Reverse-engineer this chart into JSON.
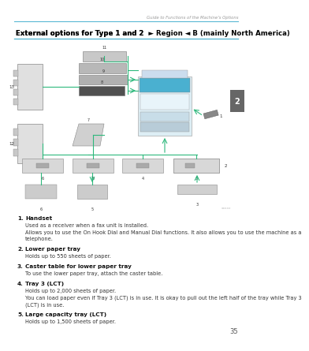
{
  "page_bg": "#ffffff",
  "header_text": "Guide to Functions of the Machine’s Options",
  "header_color": "#999999",
  "header_fontsize": 3.8,
  "header_line_color": "#5bb8d4",
  "title_text": "External options for Type 1 and 2 ",
  "title_region": "► Region ◄",
  "title_b": " B",
  "title_rest": "(mainly North America)",
  "title_fontsize": 6.2,
  "title_color": "#000000",
  "title_underline_color": "#5bb8d4",
  "tab_text": "2",
  "tab_bg": "#666666",
  "tab_color": "#ffffff",
  "page_number": "35",
  "diagram_line_color": "#2db87c",
  "items": [
    {
      "number": "1.",
      "title": "Handset",
      "lines": [
        "Used as a receiver when a fax unit is installed.",
        "Allows you to use the On Hook Dial and Manual Dial functions. It also allows you to use the machine as a",
        "telephone."
      ]
    },
    {
      "number": "2.",
      "title": "Lower paper tray",
      "lines": [
        "Holds up to 550 sheets of paper."
      ]
    },
    {
      "number": "3.",
      "title": "Caster table for lower paper tray",
      "lines": [
        "To use the lower paper tray, attach the caster table."
      ]
    },
    {
      "number": "4.",
      "title": "Tray 3 (LCT)",
      "lines": [
        "Holds up to 2,000 sheets of paper.",
        "You can load paper even if Tray 3 (LCT) is in use. It is okay to pull out the left half of the tray while Tray 3",
        "(LCT) is in use."
      ]
    },
    {
      "number": "5.",
      "title": "Large capacity tray (LCT)",
      "lines": [
        "Holds up to 1,500 sheets of paper."
      ]
    }
  ]
}
